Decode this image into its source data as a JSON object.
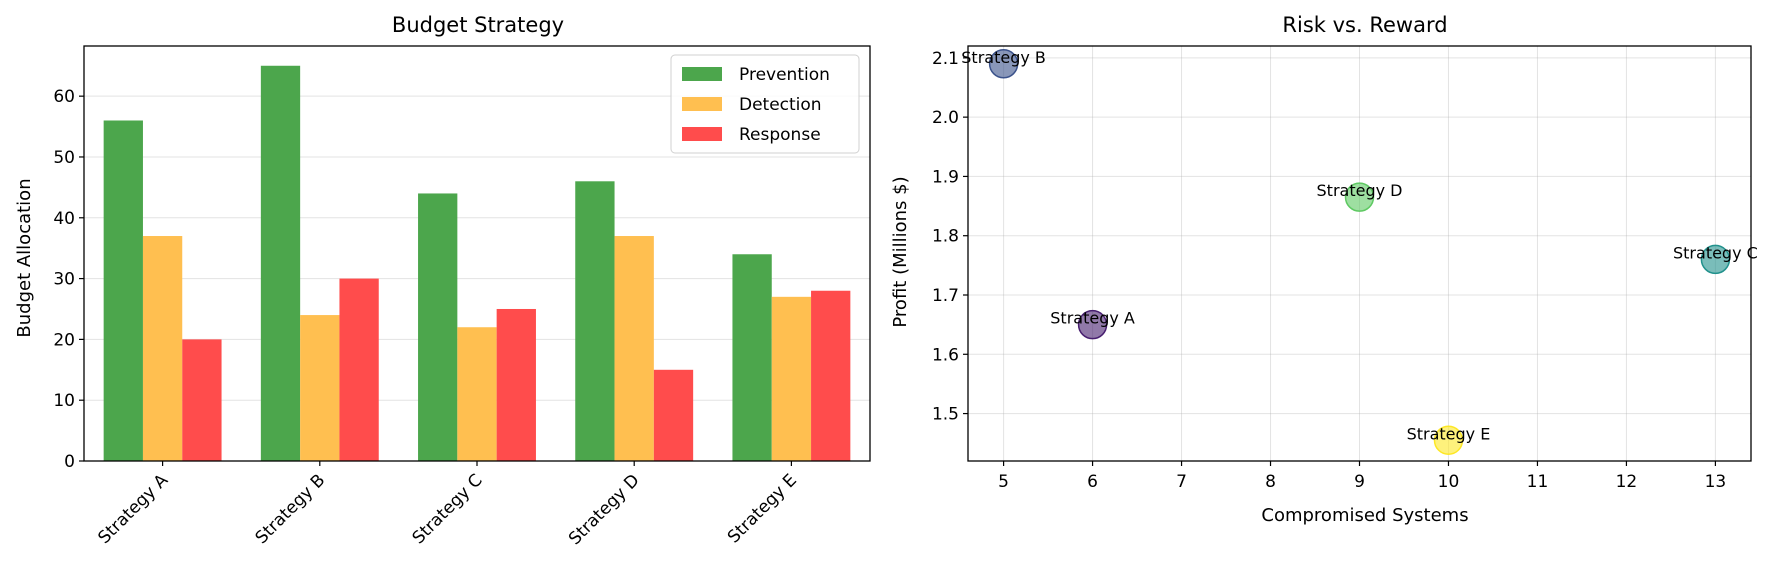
{
  "chart_data": [
    {
      "type": "bar",
      "title": "Budget Strategy",
      "xlabel": "",
      "ylabel": "Budget Allocation",
      "categories": [
        "Strategy A",
        "Strategy B",
        "Strategy C",
        "Strategy D",
        "Strategy E"
      ],
      "series": [
        {
          "name": "Prevention",
          "values": [
            56,
            65,
            44,
            46,
            34
          ],
          "color": "#4ca64c"
        },
        {
          "name": "Detection",
          "values": [
            37,
            24,
            22,
            37,
            27
          ],
          "color": "#ffbf50"
        },
        {
          "name": "Response",
          "values": [
            20,
            30,
            25,
            15,
            28
          ],
          "color": "#ff4c4c"
        }
      ],
      "ylim": [
        0,
        68.25
      ],
      "yticks": [
        0,
        10,
        20,
        30,
        40,
        50,
        60
      ],
      "grid": "y",
      "legend": "top-right"
    },
    {
      "type": "scatter",
      "title": "Risk vs. Reward",
      "xlabel": "Compromised Systems",
      "ylabel": "Profit (Millions $)",
      "points": [
        {
          "label": "Strategy A",
          "x": 6,
          "y": 1.65,
          "color": "#481f70"
        },
        {
          "label": "Strategy B",
          "x": 5,
          "y": 2.09,
          "color": "#3b528b"
        },
        {
          "label": "Strategy C",
          "x": 13,
          "y": 1.76,
          "color": "#21918c"
        },
        {
          "label": "Strategy D",
          "x": 9,
          "y": 1.865,
          "color": "#5ec962"
        },
        {
          "label": "Strategy E",
          "x": 10,
          "y": 1.455,
          "color": "#fde725"
        }
      ],
      "xlim": [
        4.6,
        13.4
      ],
      "ylim": [
        1.42,
        2.12
      ],
      "xticks": [
        5,
        6,
        7,
        8,
        9,
        10,
        11,
        12,
        13
      ],
      "yticks": [
        1.5,
        1.6,
        1.7,
        1.8,
        1.9,
        2.0,
        2.1
      ],
      "grid": "both"
    }
  ]
}
